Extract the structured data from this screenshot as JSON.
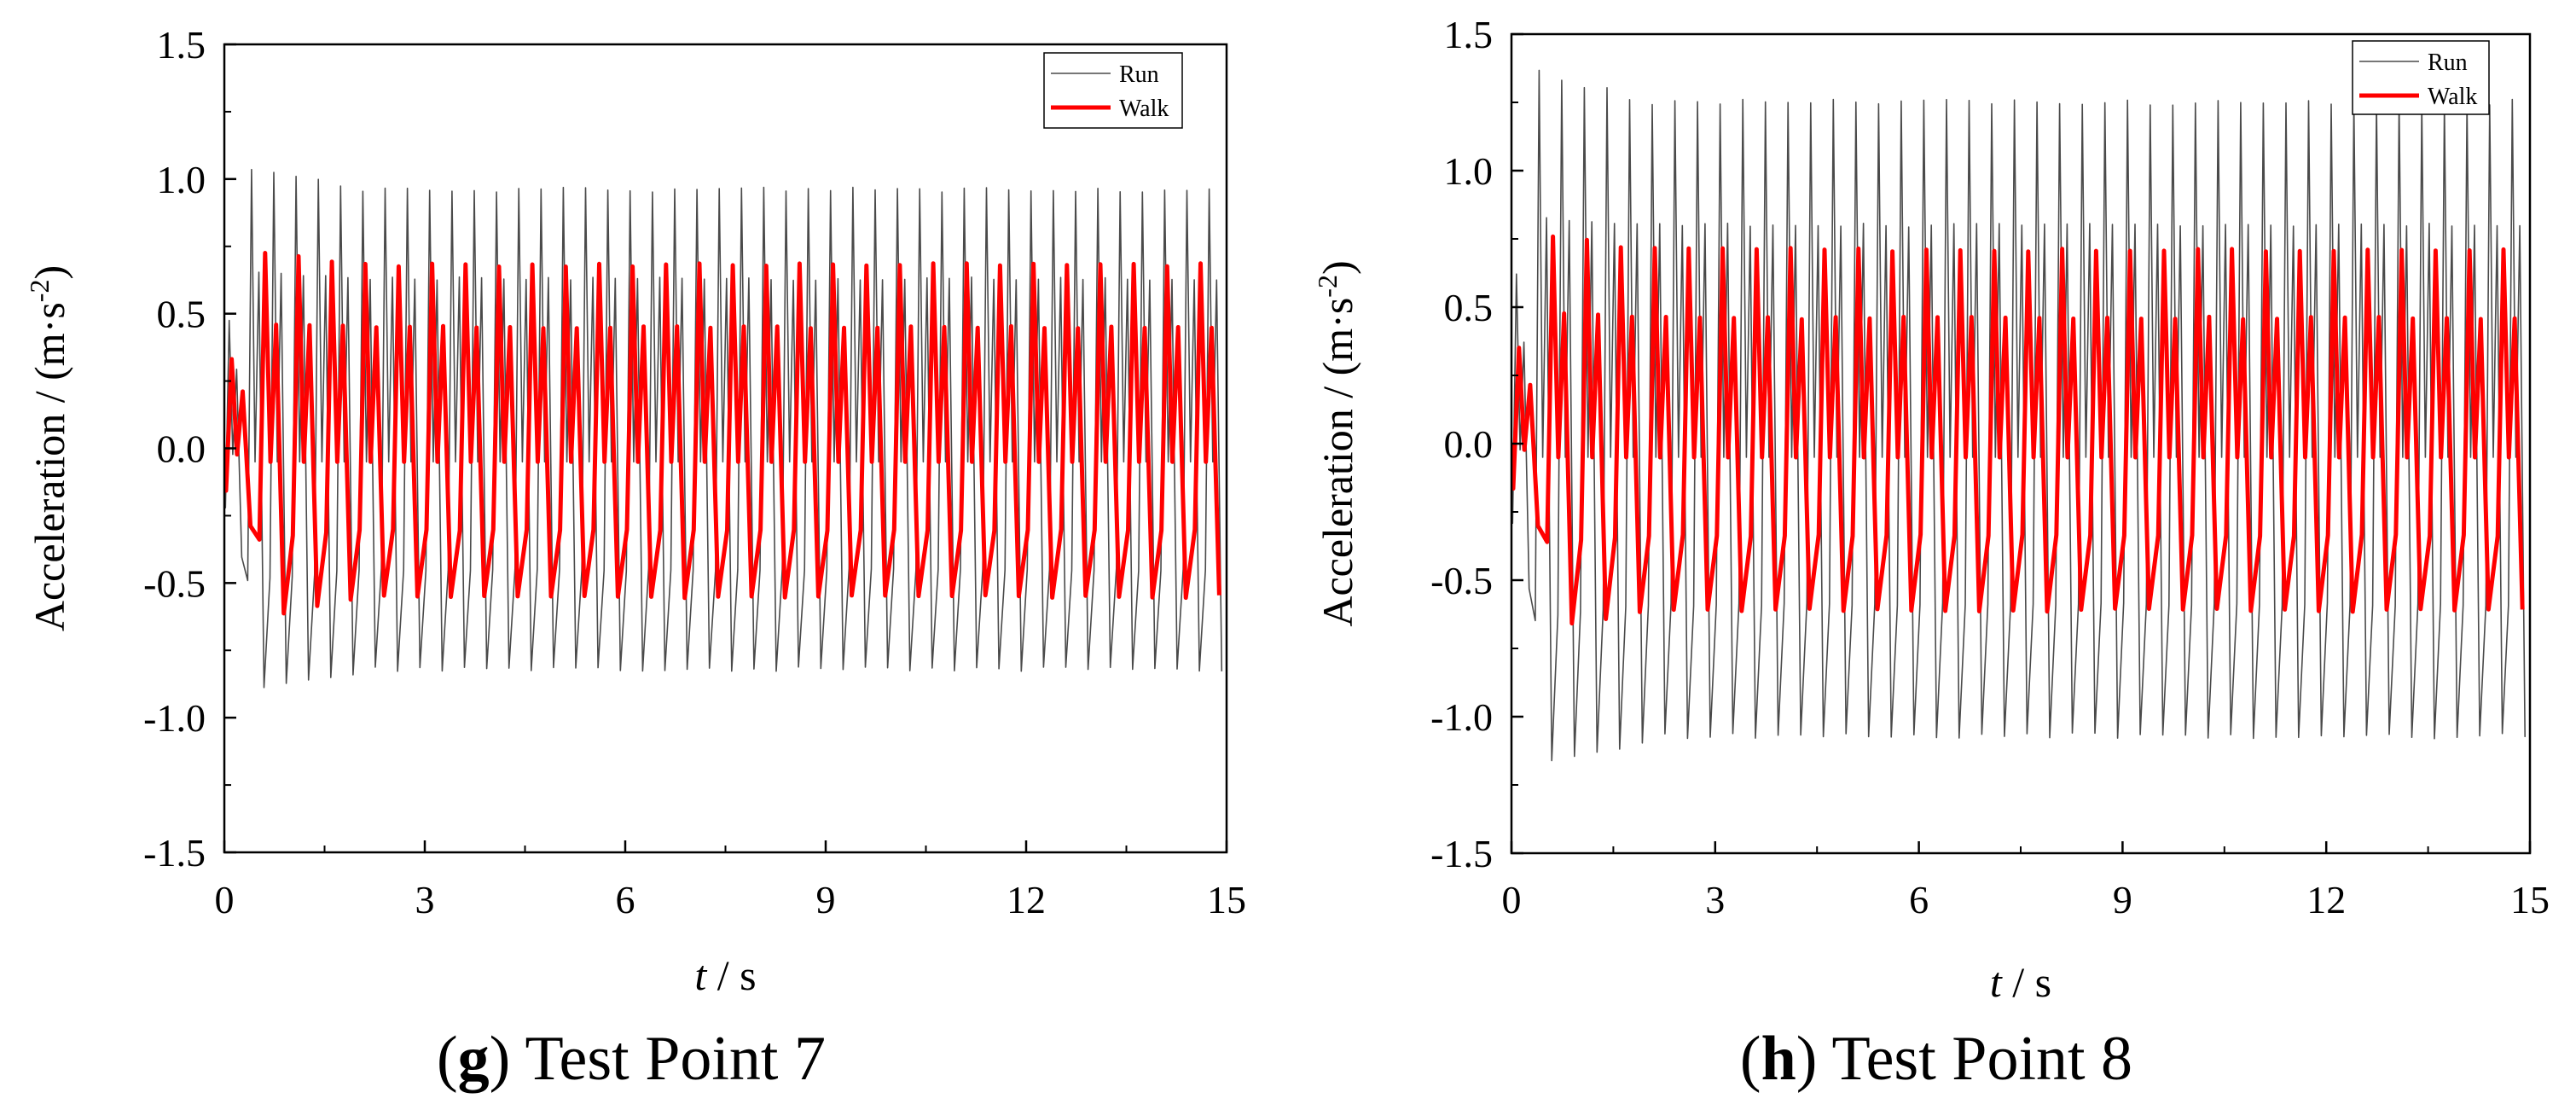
{
  "chart_data": [
    {
      "type": "line",
      "panel": "g",
      "caption_letter": "g",
      "caption_text": "Test Point 7",
      "xlabel_italic": "t",
      "xlabel_rest": " / s",
      "ylabel_main": "Acceleration / (m·s",
      "ylabel_sup": "-2",
      "ylabel_close": ")",
      "xlim": [
        0,
        15
      ],
      "ylim": [
        -1.5,
        1.5
      ],
      "x_ticks": [
        0,
        3,
        6,
        9,
        12,
        15
      ],
      "x_tick_labels": [
        "0",
        "3",
        "6",
        "9",
        "12",
        "15"
      ],
      "y_ticks": [
        -1.5,
        -1.0,
        -0.5,
        0.0,
        0.5,
        1.0,
        1.5
      ],
      "y_tick_labels": [
        "-1.5",
        "-1.0",
        "-0.5",
        "0.0",
        "0.5",
        "1.0",
        "1.5"
      ],
      "legend": [
        "Run",
        "Walk"
      ],
      "legend_position": "top-right",
      "series": [
        {
          "name": "Run",
          "color": "#4a4a4a",
          "frequency_hz": 3.0,
          "steady_peak": 0.96,
          "steady_trough": -0.82,
          "secondary_peak": 0.63,
          "initial_peak": 1.06,
          "initial_trough": -0.9,
          "transient_end_s": 2.0
        },
        {
          "name": "Walk",
          "color": "#ff0000",
          "frequency_hz": 2.0,
          "steady_peak": 0.68,
          "steady_trough": -0.55,
          "secondary_peak": 0.45,
          "initial_peak": 0.74,
          "initial_trough": -0.64,
          "transient_end_s": 1.8
        }
      ]
    },
    {
      "type": "line",
      "panel": "h",
      "caption_letter": "h",
      "caption_text": "Test Point 8",
      "xlabel_italic": "t",
      "xlabel_rest": " / s",
      "ylabel_main": "Acceleration / (m·s",
      "ylabel_sup": "-2",
      "ylabel_close": ")",
      "xlim": [
        0,
        15
      ],
      "ylim": [
        -1.5,
        1.5
      ],
      "x_ticks": [
        0,
        3,
        6,
        9,
        12,
        15
      ],
      "x_tick_labels": [
        "0",
        "3",
        "6",
        "9",
        "12",
        "15"
      ],
      "y_ticks": [
        -1.5,
        -1.0,
        -0.5,
        0.0,
        0.5,
        1.0,
        1.5
      ],
      "y_tick_labels": [
        "-1.5",
        "-1.0",
        "-0.5",
        "0.0",
        "0.5",
        "1.0",
        "1.5"
      ],
      "legend": [
        "Run",
        "Walk"
      ],
      "legend_position": "top-right",
      "series": [
        {
          "name": "Run",
          "color": "#4a4a4a",
          "frequency_hz": 3.0,
          "steady_peak": 1.25,
          "steady_trough": -1.07,
          "secondary_peak": 0.8,
          "initial_peak": 1.38,
          "initial_trough": -1.19,
          "transient_end_s": 2.0
        },
        {
          "name": "Walk",
          "color": "#ff0000",
          "frequency_hz": 2.0,
          "steady_peak": 0.71,
          "steady_trough": -0.61,
          "secondary_peak": 0.46,
          "initial_peak": 0.78,
          "initial_trough": -0.67,
          "transient_end_s": 1.8
        }
      ]
    }
  ]
}
